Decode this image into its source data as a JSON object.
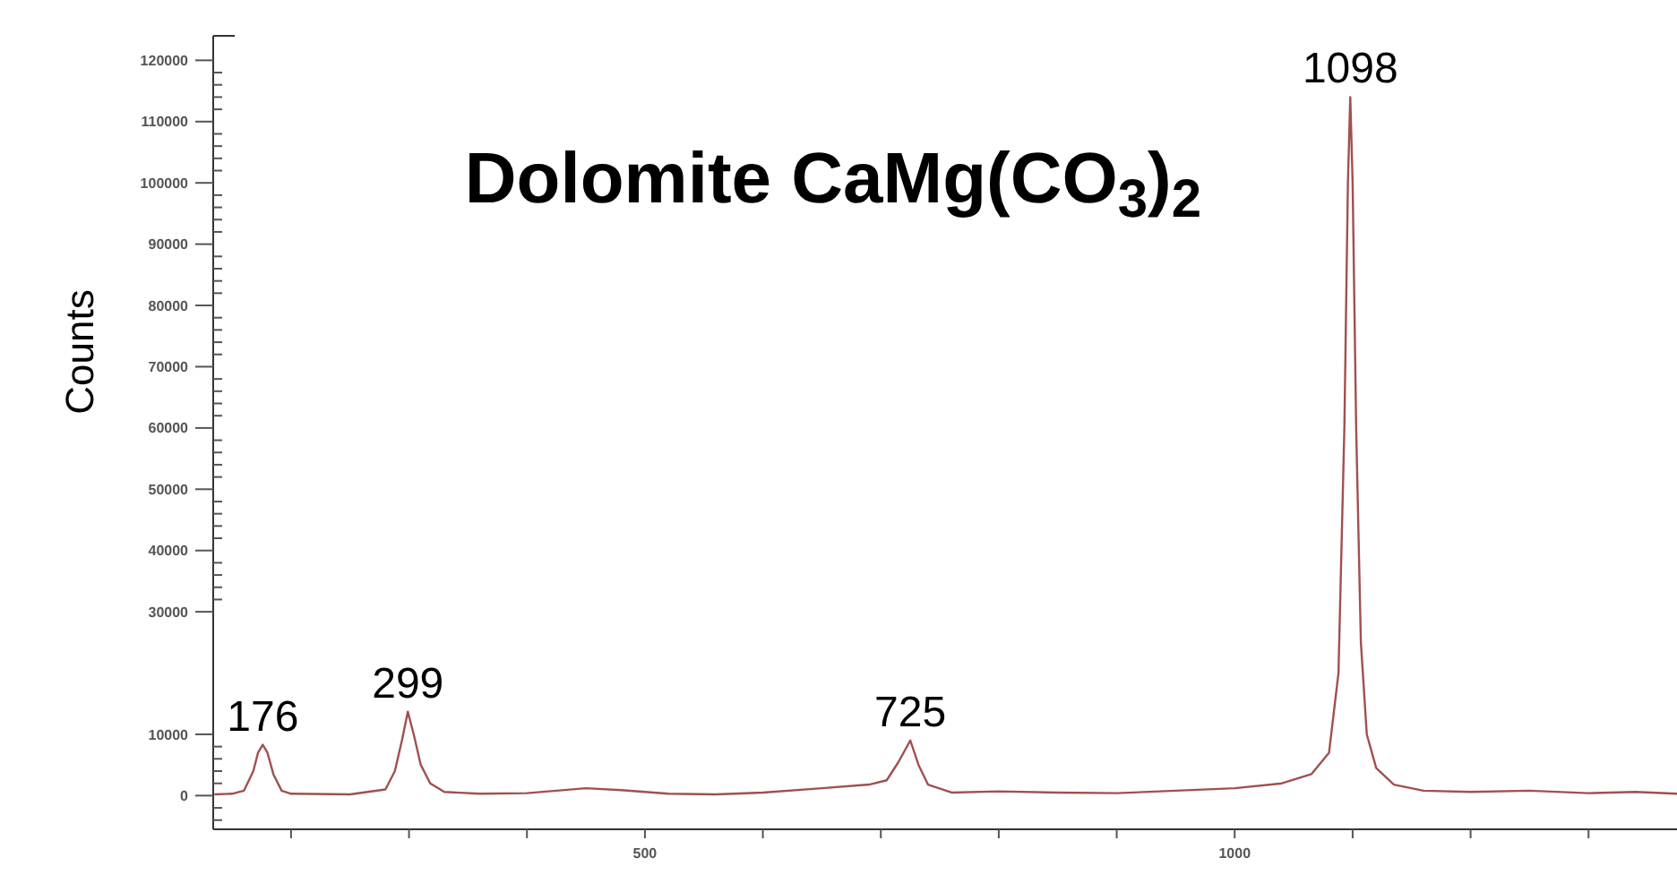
{
  "chart_data": {
    "type": "line",
    "title": "Dolomite CaMg(CO$_{3}$)$_{2}$",
    "ylabel": "Counts",
    "xlim": [
      134,
      1375
    ],
    "xticks": [
      {
        "value": 200,
        "label": null
      },
      {
        "value": 300,
        "label": null
      },
      {
        "value": 400,
        "label": null
      },
      500,
      {
        "value": 600,
        "label": null
      },
      {
        "value": 700,
        "label": null
      },
      {
        "value": 800,
        "label": null
      },
      {
        "value": 900,
        "label": null
      },
      1000,
      {
        "value": 1100,
        "label": null
      },
      {
        "value": 1200,
        "label": null
      },
      {
        "value": 1300,
        "label": null
      }
    ],
    "ylim": [
      -5500,
      124000
    ],
    "yticks": [
      {
        "value": -4000,
        "label": null
      },
      {
        "value": -2000,
        "label": null
      },
      0,
      {
        "value": 2000,
        "label": null
      },
      {
        "value": 4000,
        "label": null
      },
      {
        "value": 6000,
        "label": null
      },
      {
        "value": 8000,
        "label": null
      },
      10000,
      30000,
      {
        "value": 32000,
        "label": null
      },
      {
        "value": 34000,
        "label": null
      },
      {
        "value": 36000,
        "label": null
      },
      {
        "value": 38000,
        "label": null
      },
      40000,
      {
        "value": 42000,
        "label": null
      },
      {
        "value": 44000,
        "label": null
      },
      {
        "value": 46000,
        "label": null
      },
      {
        "value": 48000,
        "label": null
      },
      50000,
      {
        "value": 52000,
        "label": null
      },
      {
        "value": 54000,
        "label": null
      },
      {
        "value": 56000,
        "label": null
      },
      {
        "value": 58000,
        "label": null
      },
      60000,
      {
        "value": 62000,
        "label": null
      },
      {
        "value": 64000,
        "label": null
      },
      {
        "value": 66000,
        "label": null
      },
      {
        "value": 68000,
        "label": null
      },
      70000,
      {
        "value": 72000,
        "label": null
      },
      {
        "value": 74000,
        "label": null
      },
      {
        "value": 76000,
        "label": null
      },
      {
        "value": 78000,
        "label": null
      },
      80000,
      {
        "value": 82000,
        "label": null
      },
      {
        "value": 84000,
        "label": null
      },
      {
        "value": 86000,
        "label": null
      },
      {
        "value": 88000,
        "label": null
      },
      90000,
      {
        "value": 92000,
        "label": null
      },
      {
        "value": 94000,
        "label": null
      },
      {
        "value": 96000,
        "label": null
      },
      {
        "value": 98000,
        "label": null
      },
      100000,
      {
        "value": 102000,
        "label": null
      },
      {
        "value": 104000,
        "label": null
      },
      {
        "value": 106000,
        "label": null
      },
      {
        "value": 108000,
        "label": null
      },
      110000,
      {
        "value": 112000,
        "label": null
      },
      {
        "value": 114000,
        "label": null
      },
      {
        "value": 116000,
        "label": null
      },
      {
        "value": 118000,
        "label": null
      },
      120000
    ],
    "grid": false,
    "series": [
      {
        "color": "#a0504f",
        "x": [
          135,
          150,
          160,
          168,
          172,
          176,
          180,
          185,
          192,
          200,
          250,
          280,
          288,
          294,
          299,
          304,
          310,
          318,
          330,
          360,
          400,
          450,
          480,
          520,
          560,
          600,
          650,
          690,
          705,
          715,
          725,
          732,
          740,
          760,
          800,
          850,
          900,
          950,
          1000,
          1040,
          1065,
          1080,
          1088,
          1093,
          1096,
          1098,
          1100,
          1103,
          1107,
          1112,
          1120,
          1135,
          1160,
          1200,
          1250,
          1300,
          1340,
          1375
        ],
        "values": [
          200,
          300,
          800,
          4000,
          7000,
          8300,
          7000,
          3500,
          800,
          300,
          200,
          1000,
          4000,
          9000,
          13700,
          10000,
          5000,
          2000,
          600,
          300,
          400,
          1200,
          900,
          300,
          200,
          500,
          1200,
          1800,
          2500,
          5500,
          9000,
          5000,
          1800,
          500,
          700,
          500,
          400,
          800,
          1200,
          2000,
          3500,
          7000,
          20000,
          60000,
          100000,
          114000,
          100000,
          60000,
          25000,
          10000,
          4500,
          1800,
          800,
          600,
          800,
          400,
          600,
          300
        ]
      }
    ],
    "annotations": [
      {
        "text": "176",
        "x": 176,
        "y": 8300
      },
      {
        "text": "299",
        "x": 299,
        "y": 13700
      },
      {
        "text": "725",
        "x": 725,
        "y": 9000
      },
      {
        "text": "1098",
        "x": 1098,
        "y": 114000
      }
    ]
  }
}
